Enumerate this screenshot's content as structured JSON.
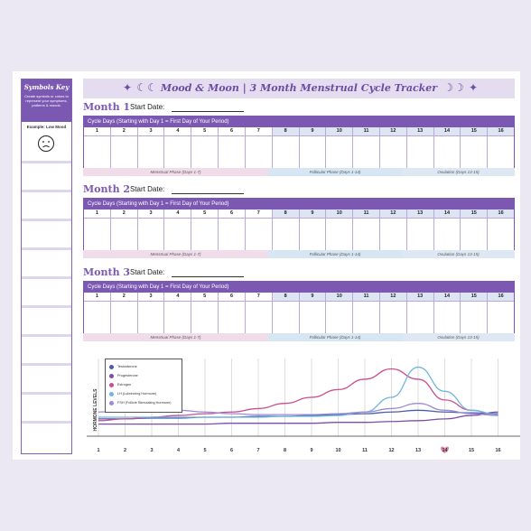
{
  "sidebar": {
    "title": "Symbols Key",
    "description": "Create symbols or colors to represent your symptoms, patterns & moods.",
    "example": "Example: Low Mood",
    "face_icon": "sad-face-icon"
  },
  "banner": {
    "title": "Mood & Moon | 3 Month Menstrual Cycle Tracker",
    "left_icons": "✦ ☾☾",
    "right_icons": "☽☽ ✦"
  },
  "months": [
    {
      "title": "Month 1",
      "start_label": "Start Date:"
    },
    {
      "title": "Month 2",
      "start_label": "Start Date:"
    },
    {
      "title": "Month 3",
      "start_label": "Start Date:"
    }
  ],
  "grid": {
    "header": "Cycle Days (Starting with Day 1 = First Day of Your Period)",
    "days": [
      "1",
      "2",
      "3",
      "4",
      "5",
      "6",
      "7",
      "8",
      "9",
      "10",
      "11",
      "12",
      "13",
      "14",
      "15",
      "16"
    ],
    "phases": {
      "menstrual": "Menstrual Phase (Days 1-7)",
      "follicular": "Follicular Phase (Days 1-14)",
      "ovulation": "Ovulation (Days 13-15)"
    }
  },
  "chart": {
    "ylabel": "HORMONE LEVELS",
    "legend": [
      {
        "name": "Testosterone",
        "color": "#4a5ea8"
      },
      {
        "name": "Progesterone",
        "color": "#7a4ea9"
      },
      {
        "name": "Estrogen",
        "color": "#c94f91"
      },
      {
        "name": "LH (Luteinizing Hormone)",
        "color": "#6fb6dd"
      },
      {
        "name": "FSH (Follicle Stimulating Hormone)",
        "color": "#9b8bd6"
      }
    ],
    "x": [
      "1",
      "2",
      "3",
      "4",
      "5",
      "6",
      "7",
      "8",
      "9",
      "10",
      "11",
      "12",
      "13",
      "14",
      "15",
      "16"
    ],
    "highlight_day": "14"
  },
  "chart_data": {
    "type": "line",
    "x": [
      1,
      2,
      3,
      4,
      5,
      6,
      7,
      8,
      9,
      10,
      11,
      12,
      13,
      14,
      15,
      16
    ],
    "ylabel": "HORMONE LEVELS",
    "series": [
      {
        "name": "Testosterone",
        "values": [
          20,
          20,
          21,
          21,
          22,
          22,
          23,
          23,
          24,
          25,
          26,
          28,
          30,
          28,
          27,
          26
        ]
      },
      {
        "name": "Progesterone",
        "values": [
          14,
          14,
          14,
          14,
          14,
          15,
          15,
          15,
          15,
          16,
          16,
          17,
          18,
          20,
          24,
          28
        ]
      },
      {
        "name": "Estrogen",
        "values": [
          18,
          20,
          22,
          24,
          26,
          28,
          32,
          38,
          45,
          54,
          66,
          78,
          66,
          42,
          30,
          24
        ]
      },
      {
        "name": "LH (Luteinizing Hormone)",
        "values": [
          22,
          22,
          22,
          22,
          22,
          22,
          22,
          23,
          23,
          24,
          28,
          45,
          80,
          52,
          30,
          25
        ]
      },
      {
        "name": "FSH (Follicle Stimulating Hormone)",
        "values": [
          28,
          30,
          32,
          30,
          28,
          26,
          25,
          25,
          25,
          26,
          28,
          32,
          38,
          30,
          26,
          24
        ]
      }
    ]
  }
}
